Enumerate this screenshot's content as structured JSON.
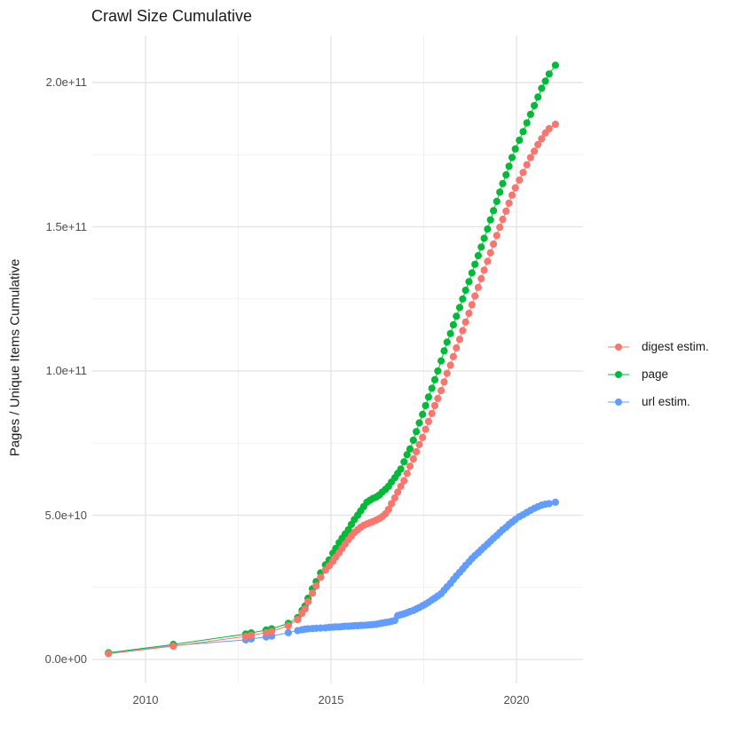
{
  "title": "Crawl Size Cumulative",
  "chart_data": {
    "type": "scatter",
    "title": "Crawl Size Cumulative",
    "xlabel": "",
    "ylabel": "Pages / Unique Items Cumulative",
    "x_ticks": [
      "2010",
      "2015",
      "2020"
    ],
    "x_tick_years": [
      2010,
      2015,
      2020
    ],
    "y_ticks": [
      "0.0e+00",
      "5.0e+10",
      "1.0e+11",
      "1.5e+11",
      "2.0e+11"
    ],
    "y_tick_values_e9": [
      0,
      50,
      100,
      150,
      200
    ],
    "xlim": [
      2008.5,
      2021.8
    ],
    "ylim_e9": [
      -10,
      216
    ],
    "grid": true,
    "legend_position": "right",
    "point_units": "[year, cumulative pages/items in billions (1e9)]",
    "series": [
      {
        "name": "digest estim.",
        "color": "#F8766D",
        "points": [
          [
            2009.0,
            2.0
          ],
          [
            2010.75,
            4.6
          ],
          [
            2012.7,
            8.0
          ],
          [
            2012.85,
            8.4
          ],
          [
            2013.25,
            9.3
          ],
          [
            2013.4,
            9.7
          ],
          [
            2013.85,
            11.7
          ],
          [
            2014.1,
            13.8
          ],
          [
            2014.22,
            16.0
          ],
          [
            2014.3,
            17.5
          ],
          [
            2014.38,
            20.0
          ],
          [
            2014.5,
            23.0
          ],
          [
            2014.6,
            25.5
          ],
          [
            2014.72,
            28.5
          ],
          [
            2014.85,
            31.0
          ],
          [
            2014.95,
            32.5
          ],
          [
            2015.05,
            34.0
          ],
          [
            2015.13,
            35.5
          ],
          [
            2015.22,
            37.0
          ],
          [
            2015.3,
            38.5
          ],
          [
            2015.38,
            40.0
          ],
          [
            2015.47,
            41.5
          ],
          [
            2015.55,
            42.8
          ],
          [
            2015.63,
            44.0
          ],
          [
            2015.72,
            45.0
          ],
          [
            2015.8,
            45.8
          ],
          [
            2015.88,
            46.5
          ],
          [
            2015.97,
            47.0
          ],
          [
            2016.05,
            47.4
          ],
          [
            2016.13,
            47.8
          ],
          [
            2016.22,
            48.3
          ],
          [
            2016.3,
            48.8
          ],
          [
            2016.38,
            49.5
          ],
          [
            2016.47,
            50.5
          ],
          [
            2016.55,
            52.0
          ],
          [
            2016.63,
            54.0
          ],
          [
            2016.72,
            56.0
          ],
          [
            2016.8,
            58.0
          ],
          [
            2016.88,
            60.0
          ],
          [
            2016.97,
            62.0
          ],
          [
            2017.05,
            64.5
          ],
          [
            2017.13,
            67.0
          ],
          [
            2017.22,
            69.5
          ],
          [
            2017.3,
            72.0
          ],
          [
            2017.38,
            74.5
          ],
          [
            2017.47,
            77.0
          ],
          [
            2017.55,
            79.8
          ],
          [
            2017.63,
            82.5
          ],
          [
            2017.72,
            85.3
          ],
          [
            2017.8,
            88.0
          ],
          [
            2017.88,
            90.5
          ],
          [
            2017.97,
            93.2
          ],
          [
            2018.05,
            96.2
          ],
          [
            2018.13,
            99.2
          ],
          [
            2018.22,
            102.0
          ],
          [
            2018.3,
            105.0
          ],
          [
            2018.38,
            108.0
          ],
          [
            2018.47,
            111.0
          ],
          [
            2018.55,
            114.0
          ],
          [
            2018.63,
            117.0
          ],
          [
            2018.72,
            120.0
          ],
          [
            2018.8,
            123.0
          ],
          [
            2018.88,
            126.0
          ],
          [
            2018.97,
            129.0
          ],
          [
            2019.05,
            132.0
          ],
          [
            2019.13,
            135.0
          ],
          [
            2019.22,
            138.0
          ],
          [
            2019.3,
            141.0
          ],
          [
            2019.38,
            144.0
          ],
          [
            2019.47,
            147.0
          ],
          [
            2019.55,
            149.8
          ],
          [
            2019.63,
            152.6
          ],
          [
            2019.72,
            155.4
          ],
          [
            2019.8,
            158.2
          ],
          [
            2019.88,
            161.0
          ],
          [
            2019.97,
            163.5
          ],
          [
            2020.08,
            166.2
          ],
          [
            2020.18,
            168.8
          ],
          [
            2020.28,
            171.5
          ],
          [
            2020.38,
            174.0
          ],
          [
            2020.48,
            176.2
          ],
          [
            2020.58,
            178.5
          ],
          [
            2020.68,
            180.5
          ],
          [
            2020.78,
            182.5
          ],
          [
            2020.88,
            184.0
          ],
          [
            2021.05,
            185.5
          ]
        ]
      },
      {
        "name": "page",
        "color": "#00BA38",
        "points": [
          [
            2009.0,
            2.3
          ],
          [
            2010.75,
            5.2
          ],
          [
            2012.7,
            8.8
          ],
          [
            2012.85,
            9.2
          ],
          [
            2013.25,
            10.2
          ],
          [
            2013.4,
            10.6
          ],
          [
            2013.85,
            12.5
          ],
          [
            2014.1,
            14.5
          ],
          [
            2014.22,
            17.0
          ],
          [
            2014.3,
            18.5
          ],
          [
            2014.38,
            21.2
          ],
          [
            2014.5,
            24.5
          ],
          [
            2014.6,
            27.0
          ],
          [
            2014.72,
            30.0
          ],
          [
            2014.85,
            32.8
          ],
          [
            2014.95,
            34.5
          ],
          [
            2015.05,
            36.8
          ],
          [
            2015.13,
            38.5
          ],
          [
            2015.22,
            40.5
          ],
          [
            2015.3,
            42.0
          ],
          [
            2015.38,
            43.5
          ],
          [
            2015.47,
            45.0
          ],
          [
            2015.55,
            46.8
          ],
          [
            2015.63,
            48.5
          ],
          [
            2015.72,
            50.0
          ],
          [
            2015.8,
            51.5
          ],
          [
            2015.88,
            53.0
          ],
          [
            2015.97,
            54.5
          ],
          [
            2016.05,
            55.2
          ],
          [
            2016.13,
            55.8
          ],
          [
            2016.22,
            56.3
          ],
          [
            2016.3,
            57.0
          ],
          [
            2016.38,
            58.0
          ],
          [
            2016.47,
            59.0
          ],
          [
            2016.55,
            60.0
          ],
          [
            2016.63,
            61.5
          ],
          [
            2016.72,
            63.0
          ],
          [
            2016.8,
            64.5
          ],
          [
            2016.88,
            66.0
          ],
          [
            2016.97,
            68.5
          ],
          [
            2017.05,
            71.0
          ],
          [
            2017.13,
            73.0
          ],
          [
            2017.22,
            76.0
          ],
          [
            2017.3,
            79.0
          ],
          [
            2017.38,
            82.0
          ],
          [
            2017.47,
            85.0
          ],
          [
            2017.55,
            88.0
          ],
          [
            2017.63,
            91.0
          ],
          [
            2017.72,
            94.0
          ],
          [
            2017.8,
            97.0
          ],
          [
            2017.88,
            100.0
          ],
          [
            2017.97,
            103.5
          ],
          [
            2018.05,
            107.0
          ],
          [
            2018.13,
            110.0
          ],
          [
            2018.22,
            113.0
          ],
          [
            2018.3,
            116.0
          ],
          [
            2018.38,
            119.0
          ],
          [
            2018.47,
            122.0
          ],
          [
            2018.55,
            125.0
          ],
          [
            2018.63,
            128.0
          ],
          [
            2018.72,
            131.0
          ],
          [
            2018.8,
            134.0
          ],
          [
            2018.88,
            137.0
          ],
          [
            2018.97,
            140.0
          ],
          [
            2019.05,
            143.0
          ],
          [
            2019.13,
            146.0
          ],
          [
            2019.22,
            149.2
          ],
          [
            2019.3,
            152.4
          ],
          [
            2019.38,
            155.6
          ],
          [
            2019.47,
            158.8
          ],
          [
            2019.55,
            162.0
          ],
          [
            2019.63,
            165.0
          ],
          [
            2019.72,
            168.0
          ],
          [
            2019.8,
            171.0
          ],
          [
            2019.88,
            174.0
          ],
          [
            2019.97,
            177.0
          ],
          [
            2020.08,
            180.0
          ],
          [
            2020.18,
            183.0
          ],
          [
            2020.28,
            186.0
          ],
          [
            2020.38,
            189.0
          ],
          [
            2020.48,
            192.0
          ],
          [
            2020.58,
            195.0
          ],
          [
            2020.68,
            198.0
          ],
          [
            2020.78,
            200.5
          ],
          [
            2020.88,
            203.0
          ],
          [
            2021.05,
            206.0
          ]
        ]
      },
      {
        "name": "url estim.",
        "color": "#619CFF",
        "points": [
          [
            2009.0,
            2.1
          ],
          [
            2010.75,
            4.8
          ],
          [
            2012.7,
            6.8
          ],
          [
            2012.85,
            7.1
          ],
          [
            2013.25,
            7.8
          ],
          [
            2013.4,
            8.1
          ],
          [
            2013.85,
            9.3
          ],
          [
            2014.1,
            10.0
          ],
          [
            2014.22,
            10.3
          ],
          [
            2014.3,
            10.5
          ],
          [
            2014.38,
            10.6
          ],
          [
            2014.5,
            10.7
          ],
          [
            2014.6,
            10.8
          ],
          [
            2014.72,
            10.9
          ],
          [
            2014.85,
            11.0
          ],
          [
            2014.95,
            11.1
          ],
          [
            2015.05,
            11.2
          ],
          [
            2015.13,
            11.3
          ],
          [
            2015.22,
            11.3
          ],
          [
            2015.3,
            11.4
          ],
          [
            2015.38,
            11.5
          ],
          [
            2015.47,
            11.5
          ],
          [
            2015.55,
            11.6
          ],
          [
            2015.63,
            11.7
          ],
          [
            2015.72,
            11.7
          ],
          [
            2015.8,
            11.8
          ],
          [
            2015.88,
            11.8
          ],
          [
            2015.97,
            11.9
          ],
          [
            2016.05,
            12.0
          ],
          [
            2016.13,
            12.1
          ],
          [
            2016.22,
            12.2
          ],
          [
            2016.3,
            12.4
          ],
          [
            2016.38,
            12.6
          ],
          [
            2016.47,
            12.8
          ],
          [
            2016.55,
            13.0
          ],
          [
            2016.63,
            13.2
          ],
          [
            2016.72,
            13.5
          ],
          [
            2016.8,
            15.2
          ],
          [
            2016.88,
            15.5
          ],
          [
            2016.97,
            15.8
          ],
          [
            2017.05,
            16.2
          ],
          [
            2017.13,
            16.6
          ],
          [
            2017.22,
            17.0
          ],
          [
            2017.3,
            17.5
          ],
          [
            2017.38,
            18.0
          ],
          [
            2017.47,
            18.6
          ],
          [
            2017.55,
            19.2
          ],
          [
            2017.63,
            19.8
          ],
          [
            2017.72,
            20.6
          ],
          [
            2017.8,
            21.3
          ],
          [
            2017.88,
            22.0
          ],
          [
            2017.97,
            22.8
          ],
          [
            2018.05,
            24.0
          ],
          [
            2018.13,
            25.2
          ],
          [
            2018.22,
            26.4
          ],
          [
            2018.3,
            27.7
          ],
          [
            2018.38,
            29.0
          ],
          [
            2018.47,
            30.2
          ],
          [
            2018.55,
            31.4
          ],
          [
            2018.63,
            32.6
          ],
          [
            2018.72,
            33.8
          ],
          [
            2018.8,
            35.0
          ],
          [
            2018.88,
            36.0
          ],
          [
            2018.97,
            37.0
          ],
          [
            2019.05,
            38.0
          ],
          [
            2019.13,
            39.0
          ],
          [
            2019.22,
            40.0
          ],
          [
            2019.3,
            41.0
          ],
          [
            2019.38,
            42.0
          ],
          [
            2019.47,
            43.0
          ],
          [
            2019.55,
            44.0
          ],
          [
            2019.63,
            45.0
          ],
          [
            2019.72,
            45.8
          ],
          [
            2019.8,
            46.8
          ],
          [
            2019.88,
            47.6
          ],
          [
            2019.97,
            48.5
          ],
          [
            2020.08,
            49.5
          ],
          [
            2020.18,
            50.2
          ],
          [
            2020.28,
            51.0
          ],
          [
            2020.38,
            51.7
          ],
          [
            2020.48,
            52.4
          ],
          [
            2020.58,
            53.0
          ],
          [
            2020.68,
            53.5
          ],
          [
            2020.78,
            53.8
          ],
          [
            2020.88,
            54.0
          ],
          [
            2021.05,
            54.5
          ]
        ]
      }
    ]
  }
}
